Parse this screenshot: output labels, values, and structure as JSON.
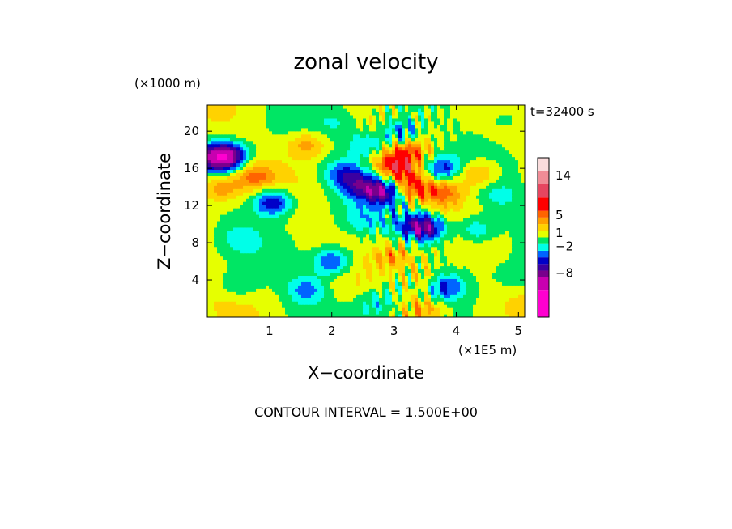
{
  "chart_data": {
    "type": "contour",
    "title": "zonal velocity",
    "xlabel": "X−coordinate",
    "ylabel": "Z−coordinate",
    "x_scale_label": "(×1E5 m)",
    "y_scale_label": "(×1000 m)",
    "time_label": "t=32400 s",
    "footer": "CONTOUR INTERVAL = 1.500E+00",
    "xlim": [
      0,
      5.1
    ],
    "ylim": [
      0,
      22.8
    ],
    "x_ticks": [
      1,
      2,
      3,
      4,
      5
    ],
    "y_ticks": [
      4,
      8,
      12,
      16,
      20
    ],
    "colorbar": {
      "tick_labels": [
        "14",
        "5",
        "1",
        "−2",
        "−8"
      ],
      "tick_values": [
        14,
        5,
        1,
        -2,
        -8
      ],
      "levels": [
        -18,
        -12,
        -9,
        -7.5,
        -6,
        -4.5,
        -3,
        -1.5,
        0,
        1.5,
        3,
        4.5,
        6,
        9,
        12,
        15,
        18
      ],
      "colors": [
        "#ff00d0",
        "#c800b0",
        "#78008c",
        "#3c00a0",
        "#0000c8",
        "#0064ff",
        "#00ffe8",
        "#00e664",
        "#e6ff00",
        "#ffd200",
        "#ffa000",
        "#ff6400",
        "#ff0000",
        "#e64660",
        "#f08c96",
        "#fadcdc"
      ]
    },
    "features": [
      {
        "x": 1.05,
        "z": 12.4,
        "u": -7.0
      },
      {
        "x": 0.35,
        "z": 17.3,
        "u": -8.5
      },
      {
        "x": 0.1,
        "z": 17.2,
        "u": -6.0
      },
      {
        "x": 2.2,
        "z": 15.5,
        "u": -4.5
      },
      {
        "x": 2.55,
        "z": 18.5,
        "u": -4.0
      },
      {
        "x": 2.85,
        "z": 13.6,
        "u": -8.0
      },
      {
        "x": 3.1,
        "z": 19.8,
        "u": -5.0
      },
      {
        "x": 3.3,
        "z": 14.0,
        "u": 6.0
      },
      {
        "x": 3.35,
        "z": 10.0,
        "u": -5.0
      },
      {
        "x": 3.55,
        "z": 9.5,
        "u": -6.0
      },
      {
        "x": 3.75,
        "z": 16.0,
        "u": -5.5
      },
      {
        "x": 3.75,
        "z": 3.5,
        "u": -7.0
      },
      {
        "x": 2.0,
        "z": 6.0,
        "u": -6.0
      },
      {
        "x": 1.6,
        "z": 3.0,
        "u": -4.0
      },
      {
        "x": 0.5,
        "z": 3.5,
        "u": -2.5
      },
      {
        "x": 0.75,
        "z": 15.2,
        "u": 4.0
      },
      {
        "x": 0.2,
        "z": 14.0,
        "u": 4.0
      },
      {
        "x": 1.6,
        "z": 18.6,
        "u": 4.0
      },
      {
        "x": 2.1,
        "z": 21.0,
        "u": -1.5
      },
      {
        "x": 3.05,
        "z": 16.2,
        "u": 7.0
      },
      {
        "x": 3.25,
        "z": 18.0,
        "u": 4.0
      },
      {
        "x": 3.8,
        "z": 13.5,
        "u": 4.5
      },
      {
        "x": 4.35,
        "z": 15.5,
        "u": 4.0
      },
      {
        "x": 4.3,
        "z": 9.5,
        "u": -4.0
      },
      {
        "x": 3.6,
        "z": 4.0,
        "u": 5.5
      },
      {
        "x": 3.0,
        "z": 6.5,
        "u": 3.5
      },
      {
        "x": 4.8,
        "z": 21.5,
        "u": -2.0
      },
      {
        "x": 4.7,
        "z": 13.0,
        "u": -2.0
      },
      {
        "x": 4.9,
        "z": 4.5,
        "u": -2.0
      },
      {
        "x": 2.5,
        "z": 10.5,
        "u": -2.0
      },
      {
        "x": 0.5,
        "z": 8.5,
        "u": -1.8
      },
      {
        "x": 2.7,
        "z": 1.5,
        "u": -3.0
      },
      {
        "x": 3.5,
        "z": 1.0,
        "u": 4.0
      },
      {
        "x": 2.45,
        "z": 14.2,
        "u": -5.0
      }
    ]
  }
}
